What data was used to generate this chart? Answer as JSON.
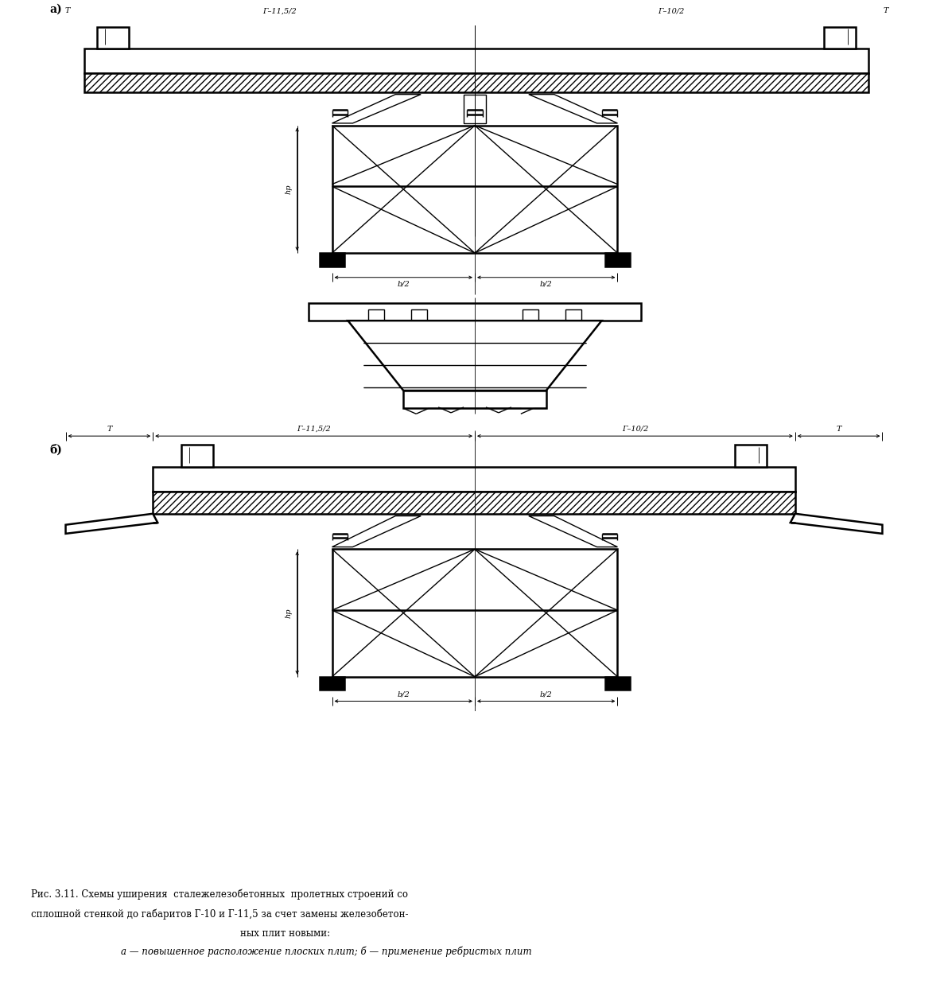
{
  "background": "#ffffff",
  "lc": "#000000",
  "label_a": "а)",
  "label_b": "б)",
  "dim_T": "T",
  "dim_G115": "Г–11,5/2",
  "dim_G10": "Г–10/2",
  "dim_b2": "b/2",
  "dim_hp": "hр",
  "caption1": "Рис. 3.11. Схемы уширения  сталежелезобетонных  пролетных строений со",
  "caption2": "сплошной стенкой до габаритов Г-10 и Г-11,5 за счет замены железобетон-",
  "caption3": "ных плит новыми:",
  "caption4": "а — повышенное расположение плоских плит; б — применение ребристых плит"
}
